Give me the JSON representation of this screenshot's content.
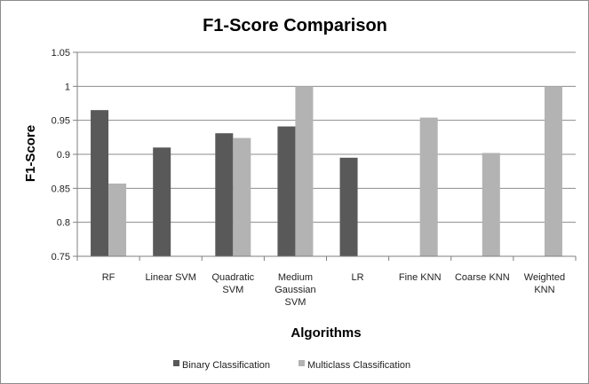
{
  "chart_data": {
    "type": "bar",
    "title": "F1-Score Comparison",
    "xlabel": "Algorithms",
    "ylabel": "F1-Score",
    "ylim": [
      0.75,
      1.05
    ],
    "yticks": [
      "0.75",
      "0.8",
      "0.85",
      "0.9",
      "0.95",
      "1",
      "1.05"
    ],
    "categories": [
      [
        "RF"
      ],
      [
        "Linear SVM"
      ],
      [
        "Quadratic",
        "SVM"
      ],
      [
        "Medium",
        "Gaussian",
        "SVM"
      ],
      [
        "LR"
      ],
      [
        "Fine KNN"
      ],
      [
        "Coarse KNN"
      ],
      [
        "Weighted",
        "KNN"
      ]
    ],
    "series": [
      {
        "name": "Binary Classification",
        "color": "#595959",
        "values": [
          0.965,
          0.91,
          0.931,
          0.941,
          0.895,
          null,
          null,
          null
        ]
      },
      {
        "name": "Multiclass Classification",
        "color": "#b3b3b3",
        "values": [
          0.857,
          null,
          0.924,
          1.0,
          null,
          0.954,
          0.902,
          1.0
        ]
      }
    ],
    "grid": true,
    "legend": "bottom"
  }
}
